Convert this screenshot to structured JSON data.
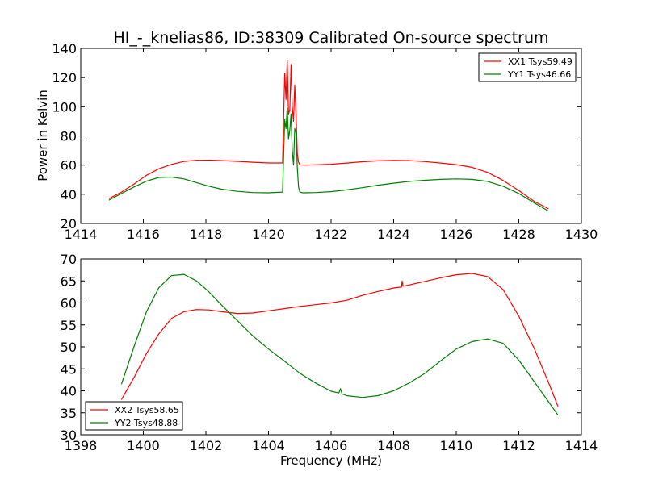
{
  "title": "HI_-_knelias86, ID:38309 Calibrated On-source spectrum",
  "chart_data": [
    {
      "type": "line",
      "ylabel": "Power in Kelvin",
      "xlabel": "",
      "xlim": [
        1414,
        1430
      ],
      "ylim": [
        20,
        140
      ],
      "xticks": [
        1414,
        1416,
        1418,
        1420,
        1422,
        1424,
        1426,
        1428,
        1430
      ],
      "yticks": [
        20,
        40,
        60,
        80,
        100,
        120,
        140
      ],
      "legend_position": "top-right",
      "series": [
        {
          "name": "XX1 Tsys59.49",
          "color": "#ff0000",
          "x": [
            1414.9,
            1415.3,
            1415.7,
            1416.1,
            1416.5,
            1416.9,
            1417.3,
            1417.7,
            1418.1,
            1418.5,
            1419.0,
            1419.5,
            1420.0,
            1420.45,
            1420.52,
            1420.56,
            1420.6,
            1420.64,
            1420.68,
            1420.72,
            1420.76,
            1420.8,
            1420.84,
            1420.88,
            1420.92,
            1420.96,
            1421.0,
            1421.1,
            1421.5,
            1422.0,
            1422.5,
            1423.0,
            1423.5,
            1424.0,
            1424.5,
            1425.0,
            1425.5,
            1426.0,
            1426.5,
            1427.0,
            1427.5,
            1428.0,
            1428.5,
            1428.95
          ],
          "y": [
            37,
            41.5,
            47,
            53,
            57.5,
            60.5,
            62.5,
            63.3,
            63.4,
            63.1,
            62.6,
            62,
            61.5,
            61.5,
            123,
            105,
            132,
            95,
            98,
            129,
            100,
            90,
            115,
            95,
            68,
            62,
            60.2,
            60,
            60.2,
            60.6,
            61.4,
            62.3,
            62.9,
            63.2,
            63.1,
            62.4,
            61.4,
            60.3,
            58.5,
            55,
            49.5,
            42.5,
            35,
            30
          ]
        },
        {
          "name": "YY1 Tsys46.66",
          "color": "#008000",
          "x": [
            1414.9,
            1415.3,
            1415.7,
            1416.1,
            1416.5,
            1416.9,
            1417.3,
            1417.7,
            1418.1,
            1418.5,
            1419.0,
            1419.5,
            1420.0,
            1420.45,
            1420.52,
            1420.56,
            1420.6,
            1420.64,
            1420.68,
            1420.72,
            1420.76,
            1420.8,
            1420.84,
            1420.88,
            1420.92,
            1420.96,
            1421.0,
            1421.1,
            1421.5,
            1422.0,
            1422.5,
            1423.0,
            1423.5,
            1424.0,
            1424.5,
            1425.0,
            1425.5,
            1426.0,
            1426.5,
            1427.0,
            1427.5,
            1428.0,
            1428.5,
            1428.95
          ],
          "y": [
            36,
            40.5,
            45,
            49,
            51.5,
            51.8,
            50.5,
            48,
            45.5,
            43.5,
            42,
            41.2,
            41,
            41.5,
            91,
            85,
            99,
            78,
            84,
            95,
            70,
            60,
            85,
            82,
            58,
            45,
            41.5,
            41,
            41.2,
            41.8,
            43,
            44.5,
            46.2,
            47.6,
            48.8,
            49.6,
            50.2,
            50.5,
            50.2,
            48.8,
            45.5,
            40.5,
            34,
            28.5
          ]
        }
      ]
    },
    {
      "type": "line",
      "xlabel": "Frequency (MHz)",
      "ylabel": "",
      "xlim": [
        1398,
        1414
      ],
      "ylim": [
        30,
        70
      ],
      "xticks": [
        1398,
        1400,
        1402,
        1404,
        1406,
        1408,
        1410,
        1412,
        1414
      ],
      "yticks": [
        30,
        35,
        40,
        45,
        50,
        55,
        60,
        65,
        70
      ],
      "legend_position": "bottom-left",
      "series": [
        {
          "name": "XX2 Tsys58.65",
          "color": "#ff0000",
          "x": [
            1399.3,
            1399.7,
            1400.1,
            1400.5,
            1400.9,
            1401.3,
            1401.7,
            1402.1,
            1402.5,
            1403.0,
            1403.5,
            1404.0,
            1404.5,
            1405.0,
            1405.5,
            1406.0,
            1406.5,
            1407.0,
            1407.5,
            1408.0,
            1408.25,
            1408.27,
            1408.3,
            1408.5,
            1409.0,
            1409.5,
            1410.0,
            1410.5,
            1411.0,
            1411.5,
            1412.0,
            1412.5,
            1413.0,
            1413.25
          ],
          "y": [
            38,
            43,
            48.5,
            53,
            56.5,
            58,
            58.5,
            58.4,
            58,
            57.6,
            57.7,
            58.2,
            58.7,
            59.2,
            59.6,
            60,
            60.6,
            61.7,
            62.6,
            63.4,
            63.6,
            65,
            63.8,
            64.1,
            64.9,
            65.7,
            66.4,
            66.7,
            66,
            63,
            57,
            49.5,
            41,
            36.5
          ]
        },
        {
          "name": "YY2 Tsys48.88",
          "color": "#008000",
          "x": [
            1399.3,
            1399.7,
            1400.1,
            1400.5,
            1400.9,
            1401.3,
            1401.7,
            1402.1,
            1402.5,
            1403.0,
            1403.5,
            1404.0,
            1404.5,
            1405.0,
            1405.5,
            1406.0,
            1406.25,
            1406.3,
            1406.35,
            1406.5,
            1407.0,
            1407.5,
            1408.0,
            1408.5,
            1409.0,
            1409.5,
            1410.0,
            1410.5,
            1411.0,
            1411.5,
            1412.0,
            1412.5,
            1413.0,
            1413.25
          ],
          "y": [
            41.5,
            50,
            58,
            63.5,
            66.2,
            66.5,
            65,
            62.5,
            59.5,
            56,
            52.5,
            49.5,
            46.8,
            44,
            41.8,
            39.9,
            39.5,
            40.5,
            39.3,
            38.9,
            38.5,
            38.9,
            40,
            41.8,
            44,
            46.8,
            49.5,
            51.2,
            51.8,
            50.8,
            47,
            42,
            37,
            34.5
          ]
        }
      ]
    }
  ]
}
